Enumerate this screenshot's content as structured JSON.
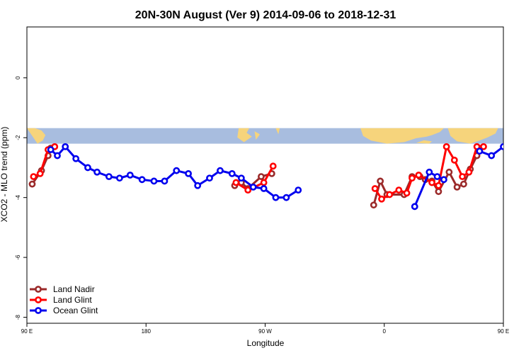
{
  "chart_data": {
    "type": "line",
    "title": "20N-30N August (Ver 9)   2014-09-06 to 2018-12-31",
    "xlabel": "Longitude",
    "ylabel": "XCO2 - MLO trend (ppm)",
    "xlim": [
      90,
      450
    ],
    "ylim": [
      -8.2,
      1.7
    ],
    "x_ticks": [
      {
        "value": 90,
        "label": "90 E"
      },
      {
        "value": 180,
        "label": "180"
      },
      {
        "value": 270,
        "label": "90 W"
      },
      {
        "value": 360,
        "label": "0"
      },
      {
        "value": 450,
        "label": "90 E"
      },
      {
        "value": 540,
        "label": "180"
      }
    ],
    "y_ticks": [
      {
        "value": 0,
        "label": "0"
      },
      {
        "value": -2,
        "label": "-2"
      },
      {
        "value": -4,
        "label": "-4"
      },
      {
        "value": -6,
        "label": "-6"
      },
      {
        "value": -8,
        "label": "-8"
      }
    ],
    "grid": false,
    "legend_position": "bottom-left",
    "map_band": {
      "ymin": -2.2,
      "ymax": -1.68,
      "ocean_color": "#a8bddf",
      "land_color": "#f6d47c"
    },
    "series": [
      {
        "name": "Land Nadir",
        "color": "#9b2a2a",
        "segments": [
          [
            [
              94,
              -3.55
            ],
            [
              101,
              -3.1
            ],
            [
              106,
              -2.6
            ],
            [
              108,
              -2.35
            ]
          ],
          [
            [
              247,
              -3.6
            ],
            [
              252,
              -3.5
            ],
            [
              257,
              -3.7
            ],
            [
              267,
              -3.3
            ],
            [
              275,
              -3.2
            ]
          ],
          [
            [
              352,
              -4.25
            ],
            [
              357,
              -3.45
            ],
            [
              362,
              -3.9
            ],
            [
              375,
              -3.9
            ],
            [
              381,
              -3.3
            ],
            [
              387,
              -3.3
            ],
            [
              391,
              -3.4
            ],
            [
              396,
              -3.45
            ],
            [
              401,
              -3.8
            ],
            [
              409,
              -3.15
            ],
            [
              415,
              -3.65
            ],
            [
              420,
              -3.55
            ],
            [
              425,
              -3.05
            ],
            [
              430,
              -2.6
            ],
            [
              432,
              -2.35
            ]
          ]
        ]
      },
      {
        "name": "Land Glint",
        "color": "#ff0000",
        "segments": [
          [
            [
              95,
              -3.3
            ],
            [
              100,
              -3.2
            ],
            [
              106,
              -2.4
            ],
            [
              111,
              -2.3
            ]
          ],
          [
            [
              248,
              -3.5
            ],
            [
              257,
              -3.75
            ],
            [
              269,
              -3.5
            ],
            [
              276,
              -2.95
            ]
          ],
          [
            [
              353,
              -3.7
            ],
            [
              358,
              -4.05
            ],
            [
              364,
              -3.9
            ],
            [
              371,
              -3.75
            ],
            [
              377,
              -3.85
            ],
            [
              381,
              -3.35
            ],
            [
              386,
              -3.25
            ],
            [
              396,
              -3.5
            ],
            [
              401,
              -3.6
            ],
            [
              407,
              -2.3
            ],
            [
              413,
              -2.75
            ],
            [
              419,
              -3.3
            ],
            [
              424,
              -3.15
            ],
            [
              430,
              -2.3
            ],
            [
              435,
              -2.3
            ]
          ]
        ]
      },
      {
        "name": "Ocean Glint",
        "color": "#0000ee",
        "segments": [
          [
            [
              108,
              -2.4
            ],
            [
              113,
              -2.6
            ],
            [
              119,
              -2.3
            ],
            [
              127,
              -2.7
            ],
            [
              136,
              -3.0
            ],
            [
              143,
              -3.15
            ],
            [
              152,
              -3.3
            ],
            [
              160,
              -3.35
            ],
            [
              168,
              -3.25
            ],
            [
              177,
              -3.4
            ],
            [
              186,
              -3.45
            ],
            [
              194,
              -3.45
            ],
            [
              203,
              -3.1
            ],
            [
              212,
              -3.2
            ],
            [
              219,
              -3.6
            ],
            [
              228,
              -3.35
            ],
            [
              236,
              -3.1
            ],
            [
              245,
              -3.2
            ],
            [
              252,
              -3.35
            ],
            [
              261,
              -3.65
            ],
            [
              269,
              -3.7
            ],
            [
              278,
              -4.0
            ],
            [
              286,
              -4.0
            ],
            [
              295,
              -3.75
            ]
          ],
          [
            [
              383,
              -4.3
            ],
            [
              394,
              -3.15
            ],
            [
              400,
              -3.3
            ],
            [
              405,
              -3.4
            ]
          ],
          [
            [
              432,
              -2.45
            ],
            [
              441,
              -2.6
            ],
            [
              450,
              -2.3
            ]
          ]
        ]
      }
    ]
  }
}
